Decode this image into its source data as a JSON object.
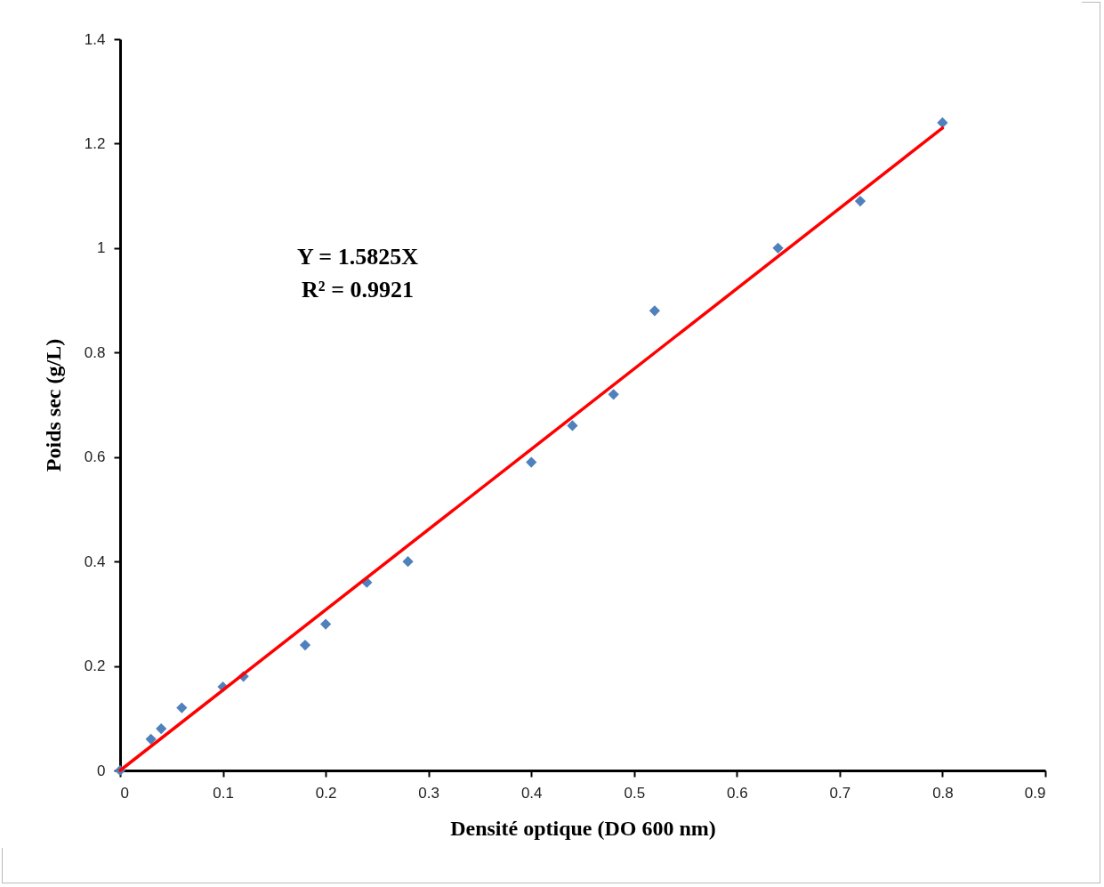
{
  "chart_data": {
    "type": "scatter",
    "xlabel": "Densité optique (DO 600 nm)",
    "ylabel": "Poids sec (g/L)",
    "annotations": [
      "Y = 1.5825X",
      "R² = 0.9921"
    ],
    "xlim": [
      0,
      0.9
    ],
    "xticks": [
      0,
      0.1,
      0.2,
      0.3,
      0.4,
      0.5,
      0.6,
      0.7,
      0.8,
      0.9
    ],
    "ylim": [
      0,
      1.4
    ],
    "yticks": [
      0,
      0.2,
      0.4,
      0.6,
      0.8,
      1,
      1.2,
      1.4
    ],
    "grid": false,
    "series": [
      {
        "marker": "diamond",
        "color": "#4f81bd",
        "x": [
          0,
          0.03,
          0.04,
          0.06,
          0.1,
          0.12,
          0.18,
          0.2,
          0.24,
          0.28,
          0.4,
          0.44,
          0.48,
          0.52,
          0.64,
          0.72,
          0.8
        ],
        "values": [
          0,
          0.06,
          0.08,
          0.12,
          0.16,
          0.18,
          0.24,
          0.28,
          0.36,
          0.4,
          0.59,
          0.66,
          0.72,
          0.88,
          1.0,
          1.09,
          1.24
        ]
      },
      {
        "type": "line",
        "color": "#ff0000",
        "x": [
          0,
          0.8
        ],
        "values": [
          0,
          1.23
        ]
      }
    ]
  }
}
